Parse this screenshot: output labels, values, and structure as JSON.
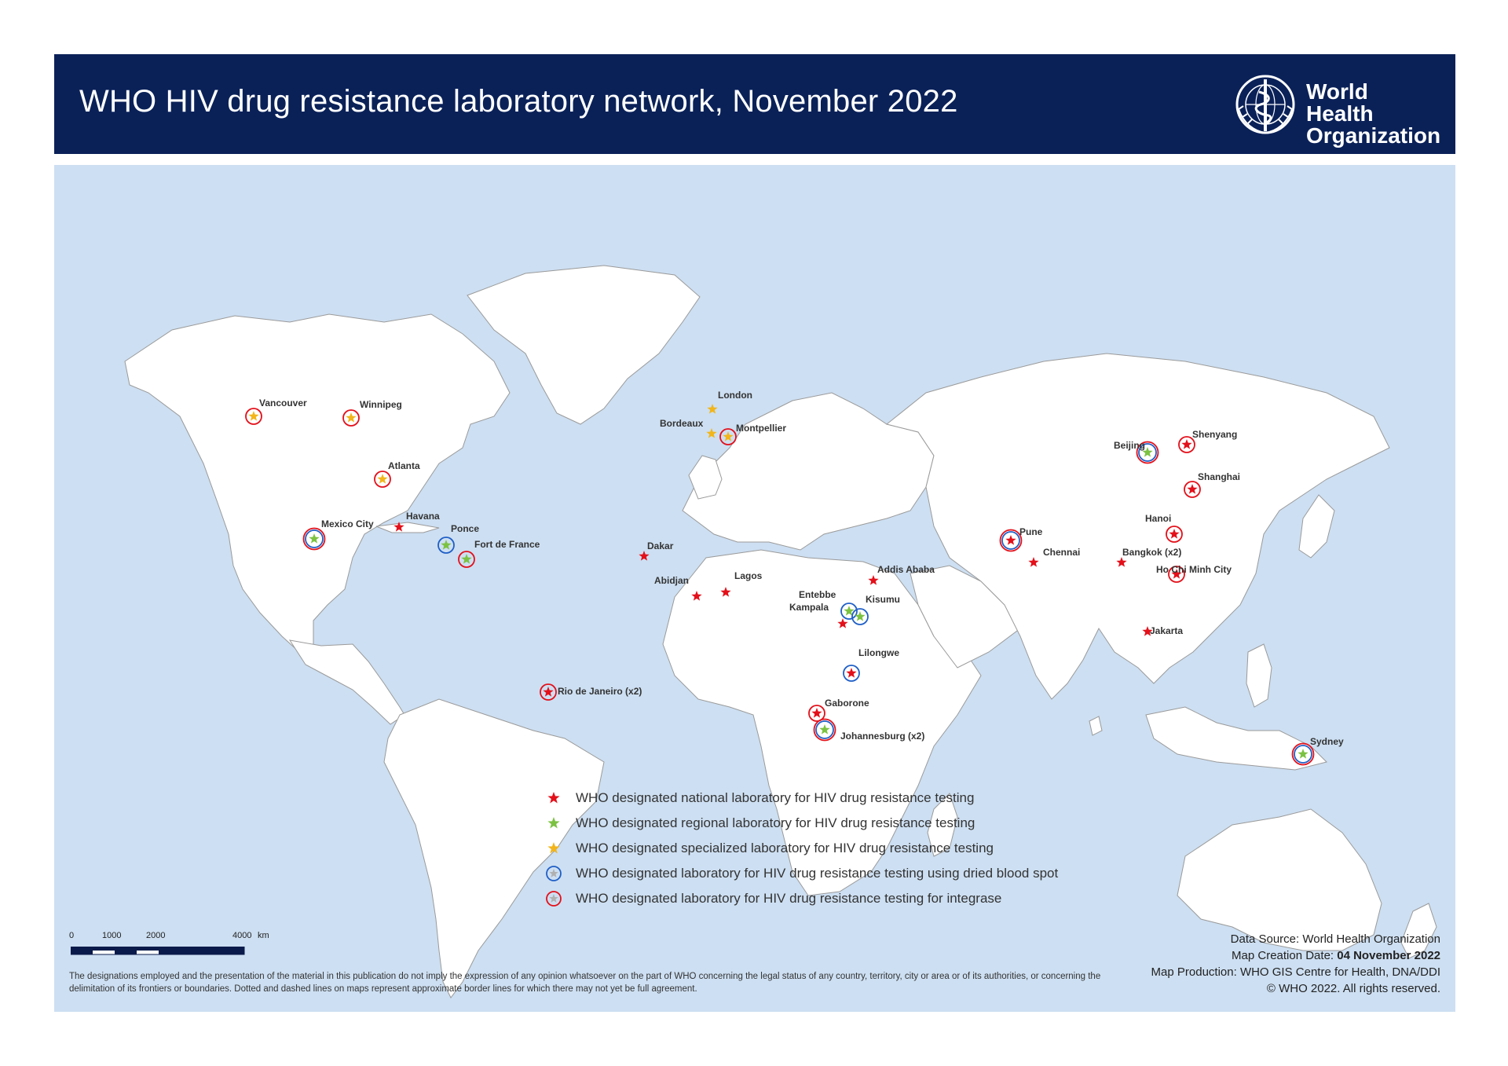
{
  "header": {
    "title": "WHO HIV drug resistance laboratory network, November 2022",
    "org_name": "World Health\nOrganization",
    "background_color": "#0a2158"
  },
  "map": {
    "ocean_color": "#cddff2",
    "land_color": "#ffffff",
    "cities": [
      {
        "label": "Vancouver",
        "symbol": "specialized",
        "circle": "integrase"
      },
      {
        "label": "Winnipeg",
        "symbol": "specialized",
        "circle": "integrase"
      },
      {
        "label": "Atlanta",
        "symbol": "specialized",
        "circle": "integrase"
      },
      {
        "label": "Mexico City",
        "symbol": "regional",
        "circle": "both"
      },
      {
        "label": "Havana",
        "symbol": "national",
        "circle": "none"
      },
      {
        "label": "Ponce",
        "symbol": "regional",
        "circle": "dbs"
      },
      {
        "label": "Fort de France",
        "symbol": "regional",
        "circle": "integrase"
      },
      {
        "label": "London",
        "symbol": "specialized",
        "circle": "none"
      },
      {
        "label": "Bordeaux",
        "symbol": "specialized",
        "circle": "none"
      },
      {
        "label": "Montpellier",
        "symbol": "specialized",
        "circle": "integrase"
      },
      {
        "label": "Dakar",
        "symbol": "national",
        "circle": "none"
      },
      {
        "label": "Abidjan",
        "symbol": "national",
        "circle": "none"
      },
      {
        "label": "Lagos",
        "symbol": "national",
        "circle": "none"
      },
      {
        "label": "Addis Ababa",
        "symbol": "national",
        "circle": "none"
      },
      {
        "label": "Entebbe",
        "symbol": "regional",
        "circle": "dbs"
      },
      {
        "label": "Kisumu",
        "symbol": "regional",
        "circle": "dbs"
      },
      {
        "label": "Kampala",
        "symbol": "national",
        "circle": "none"
      },
      {
        "label": "Lilongwe",
        "symbol": "national",
        "circle": "dbs"
      },
      {
        "label": "Gaborone",
        "symbol": "national",
        "circle": "integrase"
      },
      {
        "label": "Johannesburg (x2)",
        "symbol": "regional",
        "circle": "both"
      },
      {
        "label": "Rio de Janeiro (x2)",
        "symbol": "national",
        "circle": "integrase"
      },
      {
        "label": "Pune",
        "symbol": "national",
        "circle": "both"
      },
      {
        "label": "Chennai",
        "symbol": "national",
        "circle": "none"
      },
      {
        "label": "Beijing",
        "symbol": "regional",
        "circle": "both"
      },
      {
        "label": "Shenyang",
        "symbol": "national",
        "circle": "integrase"
      },
      {
        "label": "Shanghai",
        "symbol": "national",
        "circle": "integrase"
      },
      {
        "label": "Hanoi",
        "symbol": "national",
        "circle": "integrase"
      },
      {
        "label": "Bangkok (x2)",
        "symbol": "national",
        "circle": "none"
      },
      {
        "label": "Ho Chi Minh City",
        "symbol": "national",
        "circle": "integrase"
      },
      {
        "label": "Jakarta",
        "symbol": "national",
        "circle": "none"
      },
      {
        "label": "Sydney",
        "symbol": "regional",
        "circle": "both"
      }
    ]
  },
  "legend": {
    "items": [
      {
        "label": "WHO designated national laboratory for HIV drug resistance testing",
        "symbol": "star",
        "color": "#e3101a"
      },
      {
        "label": "WHO designated regional laboratory for HIV drug resistance testing",
        "symbol": "star",
        "color": "#7cc242"
      },
      {
        "label": "WHO designated specialized laboratory for HIV drug resistance testing",
        "symbol": "star",
        "color": "#f2b51b"
      },
      {
        "label": "WHO designated laboratory for HIV drug resistance testing using dried blood spot",
        "symbol": "circle",
        "color": "#1f5fc7"
      },
      {
        "label": "WHO designated laboratory for HIV drug resistance testing for integrase",
        "symbol": "circle",
        "color": "#e3101a"
      }
    ]
  },
  "scale_bar": {
    "labels": [
      "0",
      "1000",
      "2000",
      "4000",
      "km"
    ]
  },
  "disclaimer": "The designations employed and the presentation of the material in this publication do not imply the expression of any opinion whatsoever on the part of WHO concerning the legal status of any country, territory, city or area or of its authorities, or concerning the delimitation of its frontiers or boundaries. Dotted and dashed lines on maps represent approximate border lines for which there may not yet be full agreement.",
  "credits": {
    "data_source": "Data Source: World Health Organization",
    "creation_date_label": "Map Creation Date: ",
    "creation_date_value": "04 November 2022",
    "production": "Map Production: WHO GIS Centre for Health, DNA/DDI",
    "copyright": "© WHO 2022. All rights reserved."
  }
}
